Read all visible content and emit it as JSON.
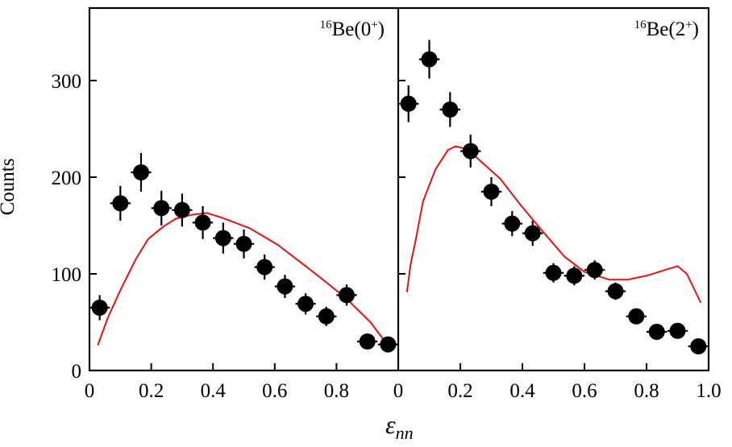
{
  "chart_data": {
    "type": "scatter",
    "xlabel": "ε",
    "xlabel_subscript": "nn",
    "ylabel": "Counts",
    "ylim": [
      0,
      375
    ],
    "yticks": [
      "0",
      "100",
      "200",
      "300"
    ],
    "ytick_values": [
      0,
      100,
      200,
      300
    ],
    "grid": false,
    "colors": {
      "data": "#000000",
      "model": "#e8120c",
      "frame": "#000000"
    },
    "panels": [
      {
        "label_mass": "16",
        "label_text": "Be(0",
        "label_sup": "+",
        "label_close": ")",
        "xlim": [
          0,
          1.0
        ],
        "xticks": [
          "0",
          "0.2",
          "0.4",
          "0.6",
          "0.8"
        ],
        "xtick_values": [
          0,
          0.2,
          0.4,
          0.6,
          0.8
        ],
        "data": {
          "x": [
            0.033,
            0.1,
            0.167,
            0.233,
            0.3,
            0.367,
            0.433,
            0.5,
            0.567,
            0.633,
            0.7,
            0.767,
            0.833,
            0.9,
            0.967
          ],
          "y": [
            65,
            173,
            205,
            168,
            166,
            153,
            137,
            131,
            107,
            87,
            69,
            56,
            78,
            30,
            27
          ],
          "yerr": [
            13,
            18,
            20,
            18,
            17,
            17,
            16,
            15,
            13,
            12,
            11,
            10,
            11,
            6,
            6
          ],
          "xerr": 0.033
        },
        "model": {
          "x": [
            0.027,
            0.06,
            0.1,
            0.15,
            0.19,
            0.24,
            0.28,
            0.33,
            0.38,
            0.43,
            0.52,
            0.61,
            0.7,
            0.76,
            0.83,
            0.91,
            0.95
          ],
          "y": [
            26,
            55,
            83,
            115,
            136,
            149,
            157,
            161,
            163,
            158,
            147,
            130,
            108,
            93,
            75,
            50,
            33
          ]
        }
      },
      {
        "label_mass": "16",
        "label_text": "Be(2",
        "label_sup": "+",
        "label_close": ")",
        "xlim": [
          0,
          1.0
        ],
        "xticks": [
          "0",
          "0.2",
          "0.4",
          "0.6",
          "0.8",
          "1.0"
        ],
        "xtick_values": [
          0,
          0.2,
          0.4,
          0.6,
          0.8,
          1.0
        ],
        "data": {
          "x": [
            0.033,
            0.1,
            0.167,
            0.233,
            0.3,
            0.367,
            0.433,
            0.5,
            0.567,
            0.633,
            0.7,
            0.767,
            0.833,
            0.9,
            0.967
          ],
          "y": [
            276,
            322,
            270,
            227,
            185,
            152,
            142,
            101,
            98,
            104,
            82,
            56,
            40,
            41,
            25
          ],
          "yerr": [
            19,
            20,
            18,
            17,
            15,
            13,
            13,
            10,
            10,
            10,
            9,
            6,
            6,
            6,
            5
          ],
          "xerr": 0.033
        },
        "model": {
          "x": [
            0.028,
            0.04,
            0.055,
            0.08,
            0.12,
            0.16,
            0.185,
            0.22,
            0.25,
            0.33,
            0.39,
            0.46,
            0.535,
            0.6,
            0.68,
            0.74,
            0.8,
            0.86,
            0.9,
            0.93,
            0.975
          ],
          "y": [
            81,
            110,
            133,
            175,
            208,
            228,
            232,
            229,
            221,
            198,
            173,
            146,
            118,
            102,
            94,
            94,
            98,
            104,
            108,
            100,
            70
          ]
        }
      }
    ]
  }
}
